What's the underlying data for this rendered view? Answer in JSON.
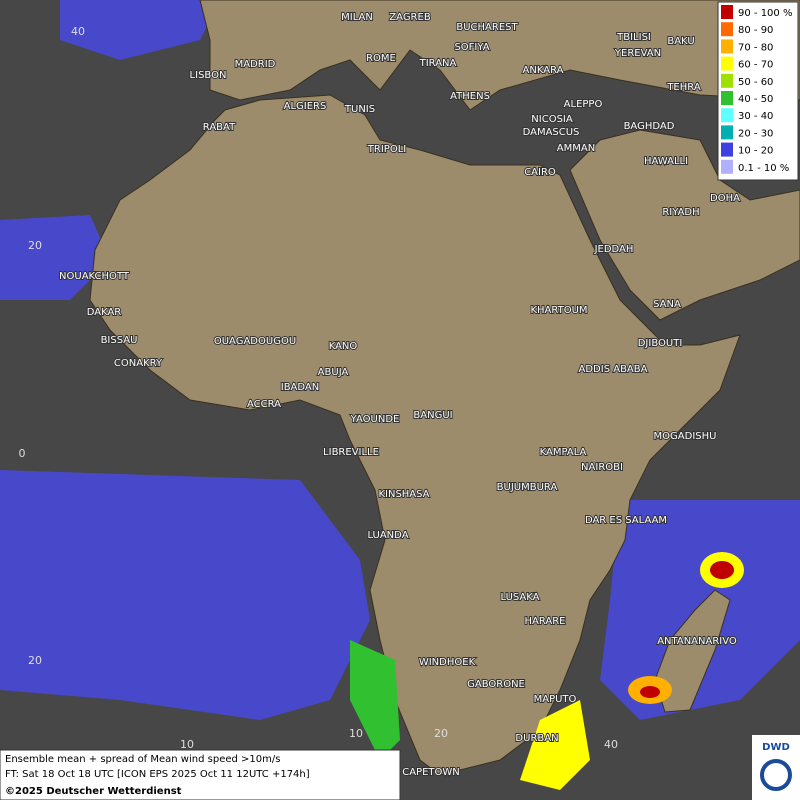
{
  "cities": [
    "MILAN",
    "ZAGREB",
    "BUCHAREST",
    "SOFIYA",
    "TBILISI",
    "BAKU",
    "YEREVAN",
    "TEHRA",
    "ROME",
    "TIRANA",
    "ANKARA",
    "MADRID",
    "LISBON",
    "ATHENS",
    "ALGIERS",
    "TUNIS",
    "ALEPPO",
    "RABAT",
    "NICOSIA",
    "BAGHDAD",
    "TRIPOLI",
    "DAMASCUS",
    "AMMAN",
    "HAWALLI",
    "CAIRO",
    "DOHA",
    "RIYADH",
    "JEDDAH",
    "NOUAKCHOTT",
    "KHARTOUM",
    "SANA",
    "DAKAR",
    "BISSAU",
    "DJIBOUTI",
    "OUAGADOUGOU",
    "KANO",
    "CONAKRY",
    "ABUJA",
    "ADDIS ABABA",
    "IBADAN",
    "ACCRA",
    "YAOUNDE",
    "BANGUI",
    "MOGADISHU",
    "LIBREVILLE",
    "KAMPALA",
    "NAIROBI",
    "KINSHASA",
    "BUJUMBURA",
    "DAR ES SALAAM",
    "LUANDA",
    "LUSAKA",
    "HARARE",
    "ANTANANARIVO",
    "WINDHOEK",
    "GABORONE",
    "MAPUTO",
    "DURBAN",
    "CAPETOWN"
  ],
  "grid_labels": [
    "40",
    "20",
    "0",
    "20",
    "10",
    "10",
    "20",
    "40"
  ],
  "legend": [
    {
      "label": "90 - 100 %",
      "color": "#c00000"
    },
    {
      "label": "80 - 90",
      "color": "#ff6a00"
    },
    {
      "label": "70 - 80",
      "color": "#ffb000"
    },
    {
      "label": "60 - 70",
      "color": "#ffff00"
    },
    {
      "label": "50 - 60",
      "color": "#a0e000"
    },
    {
      "label": "40 - 50",
      "color": "#30c030"
    },
    {
      "label": "30 - 40",
      "color": "#60ffff"
    },
    {
      "label": "20 - 30",
      "color": "#00b0b0"
    },
    {
      "label": "10 - 20",
      "color": "#4040e0"
    },
    {
      "label": "0.1 - 10 %",
      "color": "#b0b0ff"
    }
  ],
  "footer": {
    "line1": "Ensemble mean + spread of Mean wind speed >10m/s",
    "line2": "FT: Sat 18 Oct 18 UTC [ICON EPS 2025 Oct 11 12UTC +174h]",
    "copyright": "©2025 Deutscher Wetterdienst"
  },
  "logo": "DWD"
}
